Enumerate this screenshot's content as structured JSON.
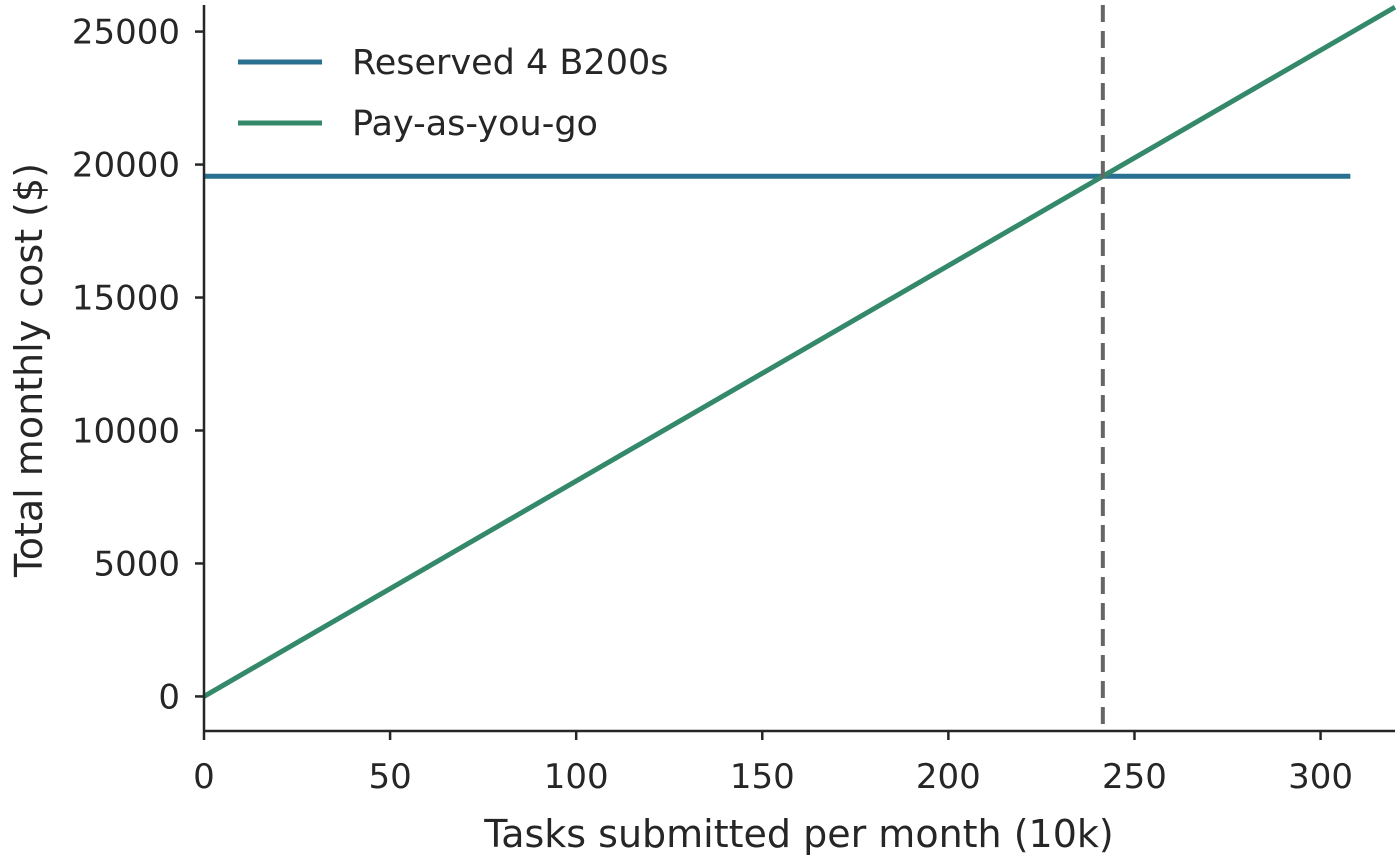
{
  "chart_data": {
    "type": "line",
    "xlabel": "Tasks submitted per month (10k)",
    "ylabel": "Total monthly cost ($)",
    "xlim": [
      0,
      320
    ],
    "ylim": [
      -1300,
      26000
    ],
    "xticks": [
      0,
      50,
      100,
      150,
      200,
      250,
      300
    ],
    "yticks": [
      0,
      5000,
      10000,
      15000,
      20000,
      25000
    ],
    "x_tick_labels": [
      "0",
      "50",
      "100",
      "150",
      "200",
      "250",
      "300"
    ],
    "y_tick_labels": [
      "0",
      "5000",
      "10000",
      "15000",
      "20000",
      "25000"
    ],
    "grid": false,
    "legend_position": "top-left",
    "series": [
      {
        "name": "Reserved 4 B200s",
        "color": "#2a7090",
        "x": [
          0,
          308
        ],
        "y": [
          19560,
          19560
        ]
      },
      {
        "name": "Pay-as-you-go",
        "color": "#34896a",
        "x": [
          0,
          320
        ],
        "y": [
          0,
          25920
        ]
      }
    ],
    "vertical_line": {
      "x": 241.5,
      "color": "#666666",
      "style": "dashed"
    }
  }
}
